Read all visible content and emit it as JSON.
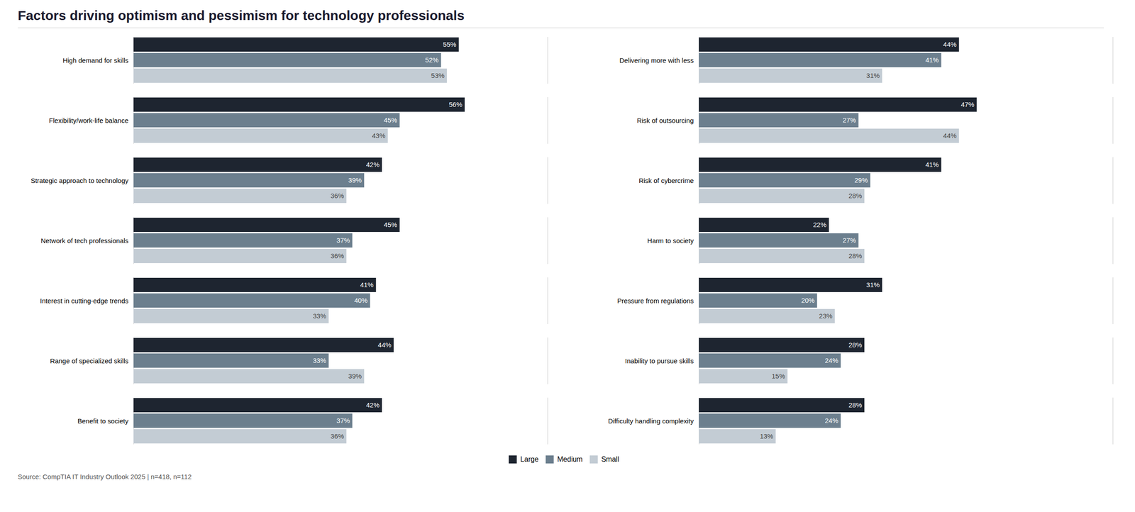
{
  "chart_data": [
    {
      "type": "bar",
      "title": "Factors driving optimism and pessimism for technology professionals",
      "orientation": "horizontal",
      "categories": [
        "High demand for skills",
        "Flexibility/work-life balance",
        "Strategic approach to technology",
        "Network of tech professionals",
        "Interest in cutting-edge trends",
        "Range of specialized skills",
        "Benefit to society"
      ],
      "series": [
        {
          "name": "Large",
          "color": "#1e2530",
          "values": [
            55,
            56,
            42,
            45,
            41,
            44,
            42
          ],
          "value_labels": [
            "55%",
            "56%",
            "42%",
            "45%",
            "41%",
            "44%",
            "42%"
          ]
        },
        {
          "name": "Medium",
          "color": "#6c7f8e",
          "values": [
            52,
            45,
            39,
            37,
            40,
            33,
            37
          ],
          "value_labels": [
            "52%",
            "45%",
            "39%",
            "37%",
            "40%",
            "33%",
            "37%"
          ]
        },
        {
          "name": "Small",
          "color": "#c3ccd4",
          "values": [
            53,
            43,
            36,
            36,
            33,
            39,
            36
          ],
          "value_labels": [
            "53%",
            "43%",
            "36%",
            "36%",
            "33%",
            "39%",
            "36%"
          ]
        }
      ],
      "xlim": [
        0,
        70
      ],
      "tick_labels": "y",
      "data_labels": true,
      "grid": false,
      "legend": "bottom"
    },
    {
      "type": "bar",
      "orientation": "horizontal",
      "categories": [
        "Delivering more with less",
        "Risk of outsourcing",
        "Risk of cybercrime",
        "Harm to society",
        "Pressure from regulations",
        "Inability to pursue skills",
        "Difficulty handling complexity"
      ],
      "series": [
        {
          "name": "Large",
          "color": "#1e2530",
          "values": [
            44,
            47,
            41,
            22,
            31,
            28,
            28
          ],
          "value_labels": [
            "44%",
            "47%",
            "41%",
            "22%",
            "31%",
            "28%",
            "28%"
          ]
        },
        {
          "name": "Medium",
          "color": "#6c7f8e",
          "values": [
            41,
            27,
            29,
            27,
            20,
            24,
            24
          ],
          "value_labels": [
            "41%",
            "27%",
            "29%",
            "27%",
            "20%",
            "24%",
            "24%"
          ]
        },
        {
          "name": "Small",
          "color": "#c3ccd4",
          "values": [
            31,
            44,
            28,
            28,
            23,
            15,
            13
          ],
          "value_labels": [
            "31%",
            "44%",
            "28%",
            "28%",
            "23%",
            "15%",
            "13%"
          ]
        }
      ],
      "xlim": [
        0,
        70
      ],
      "tick_labels": "y",
      "data_labels": true,
      "grid": false,
      "annotations": [
        "Source: CompTIA IT Industry Outlook 2025 | n=418, n=112"
      ]
    }
  ]
}
